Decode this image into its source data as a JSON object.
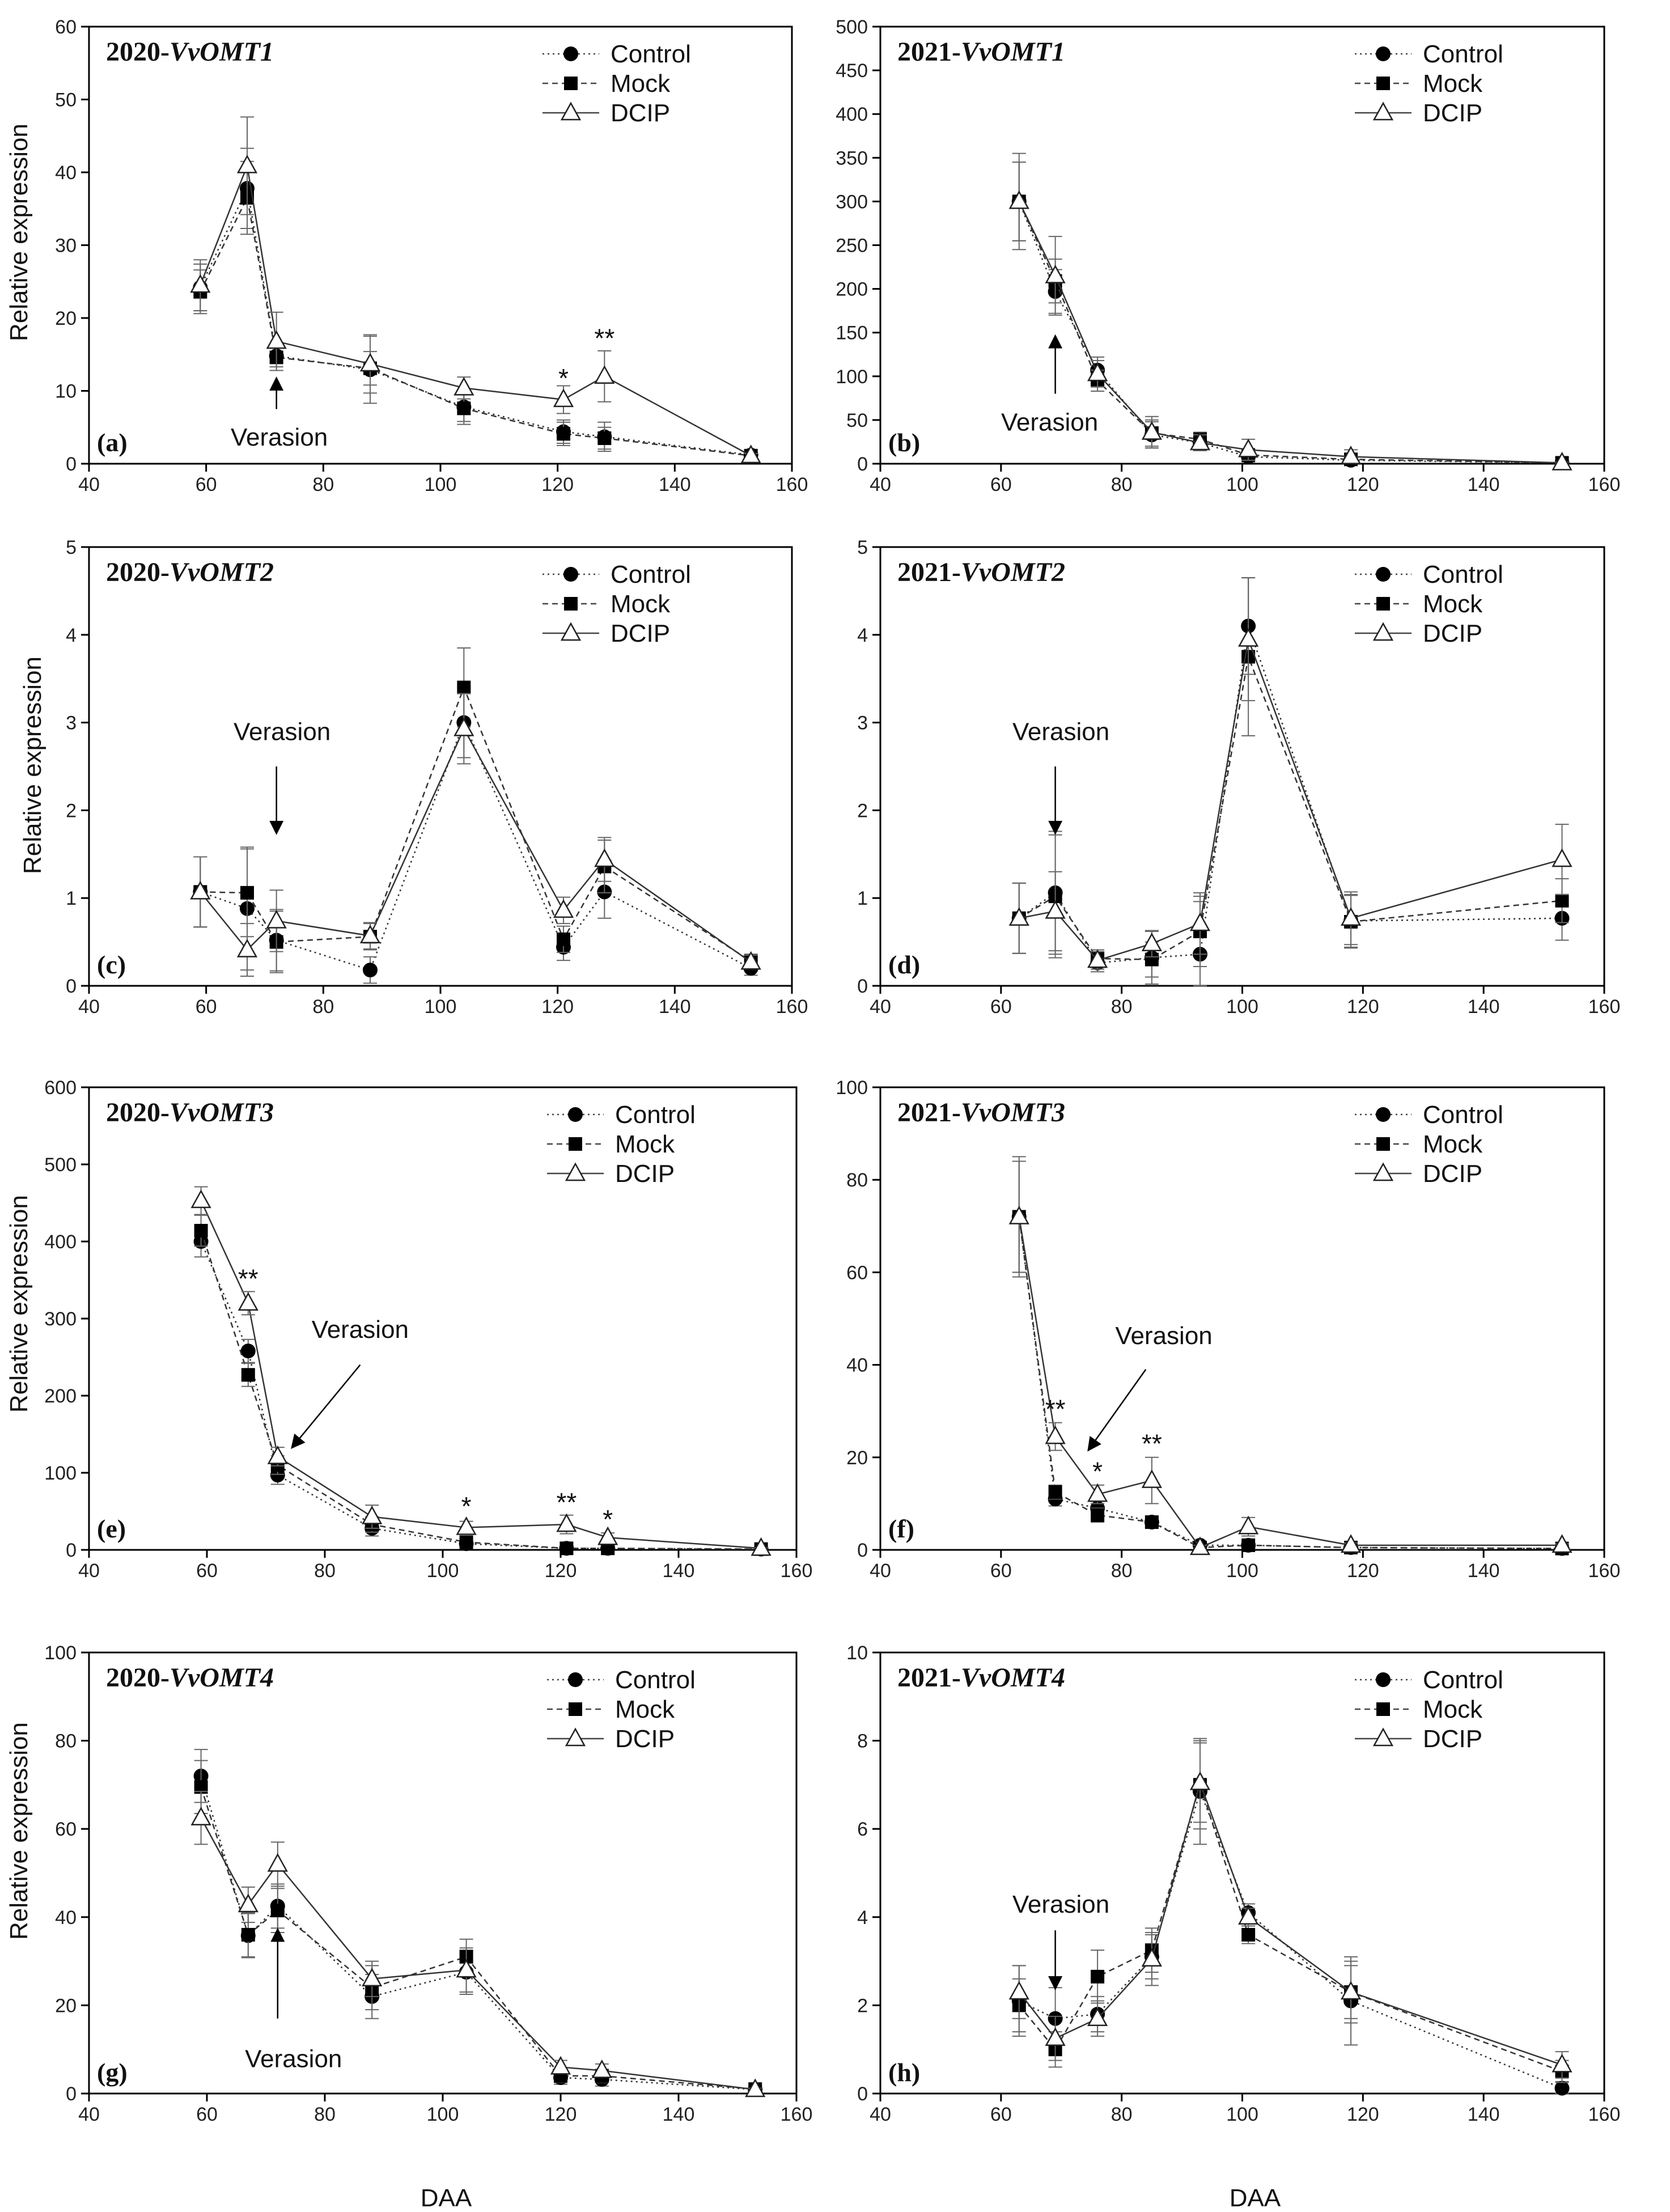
{
  "legend_labels": [
    "Control",
    "Mock",
    "DCIP"
  ],
  "xlabel": "DAA",
  "ylabel": "Relative expression",
  "verasion_label": "Verasion",
  "chart_data": [
    {
      "id": "a",
      "type": "line",
      "letter": "(a)",
      "gene_prefix": "2020-",
      "gene": "VvOMT1",
      "xlim": [
        40,
        160
      ],
      "ylim": [
        0,
        60
      ],
      "xticks": [
        40,
        60,
        80,
        100,
        120,
        140,
        160
      ],
      "yticks": [
        0,
        10,
        20,
        30,
        40,
        50,
        60
      ],
      "verasion": {
        "x": 72,
        "label_pos": "below"
      },
      "series": [
        {
          "name": "Control",
          "x": [
            59,
            67,
            72,
            88,
            104,
            121,
            128,
            153
          ],
          "y": [
            24.2,
            37.8,
            14.8,
            12.9,
            7.8,
            4.4,
            3.7,
            1.2
          ],
          "err": [
            3.2,
            5.5,
            1.5,
            4.6,
            2.0,
            1.6,
            2.0,
            0.3
          ]
        },
        {
          "name": "Mock",
          "x": [
            59,
            67,
            72,
            88,
            104,
            121,
            128,
            153
          ],
          "y": [
            23.6,
            36.5,
            14.6,
            13.1,
            7.6,
            4.1,
            3.5,
            1.1
          ],
          "err": [
            3.0,
            5.0,
            1.8,
            2.3,
            2.2,
            1.6,
            1.5,
            0.3
          ]
        },
        {
          "name": "DCIP",
          "x": [
            59,
            67,
            72,
            88,
            104,
            121,
            128,
            153
          ],
          "y": [
            24.5,
            40.9,
            16.8,
            13.7,
            10.4,
            8.8,
            12.0,
            1.1
          ],
          "err": [
            3.5,
            6.7,
            4.0,
            4.0,
            1.5,
            1.9,
            3.5,
            0.3
          ]
        }
      ],
      "stars": [
        {
          "x": 121,
          "y": 10.5,
          "text": "*"
        },
        {
          "x": 128,
          "y": 16.0,
          "text": "**"
        }
      ]
    },
    {
      "id": "b",
      "type": "line",
      "letter": "(b)",
      "gene_prefix": "2021-",
      "gene": "VvOMT1",
      "xlim": [
        40,
        160
      ],
      "ylim": [
        0,
        500
      ],
      "xticks": [
        40,
        60,
        80,
        100,
        120,
        140,
        160
      ],
      "yticks": [
        0,
        50,
        100,
        150,
        200,
        250,
        300,
        350,
        400,
        450,
        500
      ],
      "verasion": {
        "x": 69,
        "label_pos": "below"
      },
      "series": [
        {
          "name": "Control",
          "x": [
            63,
            69,
            76,
            85,
            93,
            101,
            118,
            153
          ],
          "y": [
            300,
            197,
            107,
            33,
            24,
            8,
            4,
            1
          ],
          "err": [
            45,
            25,
            15,
            15,
            9,
            6,
            4,
            1
          ]
        },
        {
          "name": "Mock",
          "x": [
            63,
            69,
            76,
            85,
            93,
            101,
            118,
            153
          ],
          "y": [
            300,
            209,
            95,
            35,
            28,
            10,
            5,
            1
          ],
          "err": [
            45,
            25,
            12,
            15,
            8,
            6,
            5,
            1
          ]
        },
        {
          "name": "DCIP",
          "x": [
            63,
            69,
            76,
            85,
            93,
            101,
            118,
            153
          ],
          "y": [
            300,
            215,
            103,
            36,
            24,
            16,
            8,
            1
          ],
          "err": [
            55,
            45,
            15,
            18,
            9,
            12,
            8,
            1
          ]
        }
      ],
      "stars": []
    },
    {
      "id": "c",
      "type": "line",
      "letter": "(c)",
      "gene_prefix": "2020-",
      "gene": "VvOMT2",
      "xlim": [
        40,
        160
      ],
      "ylim": [
        0,
        5
      ],
      "xticks": [
        40,
        60,
        80,
        100,
        120,
        140,
        160
      ],
      "yticks": [
        0,
        1,
        2,
        3,
        4,
        5
      ],
      "verasion": {
        "x": 72,
        "label_pos": "above"
      },
      "series": [
        {
          "name": "Control",
          "x": [
            59,
            67,
            72,
            88,
            104,
            121,
            128,
            153
          ],
          "y": [
            1.07,
            0.88,
            0.52,
            0.18,
            3.0,
            0.44,
            1.07,
            0.2
          ],
          "err": [
            0.4,
            0.7,
            0.35,
            0.15,
            0.4,
            0.15,
            0.3,
            0.08
          ]
        },
        {
          "name": "Mock",
          "x": [
            59,
            67,
            72,
            88,
            104,
            121,
            128,
            153
          ],
          "y": [
            1.07,
            1.06,
            0.5,
            0.56,
            3.4,
            0.53,
            1.36,
            0.28
          ],
          "err": [
            0.4,
            0.5,
            0.35,
            0.15,
            0.45,
            0.15,
            0.3,
            0.08
          ]
        },
        {
          "name": "DCIP",
          "x": [
            59,
            67,
            72,
            88,
            104,
            121,
            128,
            153
          ],
          "y": [
            1.07,
            0.41,
            0.74,
            0.57,
            2.93,
            0.86,
            1.44,
            0.27
          ],
          "err": [
            0.4,
            0.3,
            0.35,
            0.15,
            0.4,
            0.15,
            0.25,
            0.08
          ]
        }
      ],
      "stars": []
    },
    {
      "id": "d",
      "type": "line",
      "letter": "(d)",
      "gene_prefix": "2021-",
      "gene": "VvOMT2",
      "xlim": [
        40,
        160
      ],
      "ylim": [
        0,
        5
      ],
      "xticks": [
        40,
        60,
        80,
        100,
        120,
        140,
        160
      ],
      "yticks": [
        0,
        1,
        2,
        3,
        4,
        5
      ],
      "verasion": {
        "x": 69,
        "label_pos": "above"
      },
      "series": [
        {
          "name": "Control",
          "x": [
            63,
            69,
            76,
            85,
            93,
            101,
            118,
            153
          ],
          "y": [
            0.77,
            1.06,
            0.26,
            0.32,
            0.36,
            4.1,
            0.74,
            0.77
          ],
          "err": [
            0.4,
            0.7,
            0.1,
            0.3,
            0.6,
            0.55,
            0.3,
            0.25
          ]
        },
        {
          "name": "Mock",
          "x": [
            63,
            69,
            76,
            85,
            93,
            101,
            118,
            153
          ],
          "y": [
            0.77,
            1.02,
            0.31,
            0.3,
            0.62,
            3.75,
            0.73,
            0.97
          ],
          "err": [
            0.4,
            0.7,
            0.1,
            0.2,
            0.4,
            0.9,
            0.3,
            0.25
          ]
        },
        {
          "name": "DCIP",
          "x": [
            63,
            69,
            76,
            85,
            93,
            101,
            118,
            153
          ],
          "y": [
            0.77,
            0.85,
            0.29,
            0.48,
            0.71,
            3.95,
            0.77,
            1.44
          ],
          "err": [
            0.4,
            0.45,
            0.1,
            0.15,
            0.35,
            0.7,
            0.3,
            0.4
          ]
        }
      ],
      "stars": []
    },
    {
      "id": "e",
      "type": "line",
      "letter": "(e)",
      "gene_prefix": "2020-",
      "gene": "VvOMT3",
      "xlim": [
        40,
        160
      ],
      "ylim": [
        0,
        600
      ],
      "xticks": [
        40,
        60,
        80,
        100,
        120,
        140,
        160
      ],
      "yticks": [
        0,
        100,
        200,
        300,
        400,
        500,
        600
      ],
      "verasion": {
        "x": 74,
        "label_pos": "upright"
      },
      "series": [
        {
          "name": "Control",
          "x": [
            59,
            67,
            72,
            88,
            104,
            121,
            128,
            154
          ],
          "y": [
            400,
            258,
            97,
            28,
            8,
            2,
            2,
            1
          ],
          "err": [
            20,
            15,
            12,
            10,
            4,
            2,
            2,
            1
          ]
        },
        {
          "name": "Mock",
          "x": [
            59,
            67,
            72,
            88,
            104,
            121,
            128,
            154
          ],
          "y": [
            414,
            227,
            110,
            33,
            10,
            2,
            2,
            1
          ],
          "err": [
            20,
            15,
            12,
            10,
            4,
            2,
            2,
            1
          ]
        },
        {
          "name": "DCIP",
          "x": [
            59,
            67,
            72,
            88,
            104,
            121,
            128,
            154
          ],
          "y": [
            453,
            320,
            121,
            43,
            29,
            33,
            16,
            2
          ],
          "err": [
            18,
            15,
            12,
            15,
            8,
            12,
            6,
            1
          ]
        }
      ],
      "stars": [
        {
          "x": 67,
          "y": 340,
          "text": "**"
        },
        {
          "x": 104,
          "y": 45,
          "text": "*"
        },
        {
          "x": 121,
          "y": 50,
          "text": "**"
        },
        {
          "x": 128,
          "y": 28,
          "text": "*"
        }
      ]
    },
    {
      "id": "f",
      "type": "line",
      "letter": "(f)",
      "gene_prefix": "2021-",
      "gene": "VvOMT3",
      "xlim": [
        40,
        160
      ],
      "ylim": [
        0,
        100
      ],
      "xticks": [
        40,
        60,
        80,
        100,
        120,
        140,
        160
      ],
      "yticks": [
        0,
        20,
        40,
        60,
        80,
        100
      ],
      "verasion": {
        "x": 72,
        "label_pos": "upright"
      },
      "series": [
        {
          "name": "Control",
          "x": [
            63,
            69,
            76,
            85,
            93,
            101,
            118,
            153
          ],
          "y": [
            72,
            11,
            9,
            6,
            1,
            1,
            0.5,
            0.3
          ],
          "err": [
            12,
            1.5,
            1.5,
            1,
            0.5,
            0.5,
            0.3,
            0.2
          ]
        },
        {
          "name": "Mock",
          "x": [
            63,
            69,
            76,
            85,
            93,
            101,
            118,
            153
          ],
          "y": [
            72,
            12.5,
            7.5,
            6,
            0.5,
            1,
            0.5,
            0.3
          ],
          "err": [
            12,
            1.5,
            1.5,
            1,
            0.5,
            0.5,
            0.3,
            0.2
          ]
        },
        {
          "name": "DCIP",
          "x": [
            63,
            69,
            76,
            85,
            93,
            101,
            118,
            153
          ],
          "y": [
            72,
            24.5,
            12,
            15,
            0.5,
            5,
            1,
            1
          ],
          "err": [
            13,
            3,
            2,
            5,
            0.5,
            2,
            0.5,
            0.3
          ]
        }
      ],
      "stars": [
        {
          "x": 69,
          "y": 28.5,
          "text": "**"
        },
        {
          "x": 76,
          "y": 15,
          "text": "*"
        },
        {
          "x": 85,
          "y": 21,
          "text": "**"
        }
      ]
    },
    {
      "id": "g",
      "type": "line",
      "letter": "(g)",
      "gene_prefix": "2020-",
      "gene": "VvOMT4",
      "xlim": [
        40,
        160
      ],
      "ylim": [
        0,
        100
      ],
      "xticks": [
        40,
        60,
        80,
        100,
        120,
        140,
        160
      ],
      "yticks": [
        0,
        20,
        40,
        60,
        80,
        100
      ],
      "verasion": {
        "x": 72,
        "label_pos": "below"
      },
      "series": [
        {
          "name": "Control",
          "x": [
            59,
            67,
            72,
            88,
            104,
            120,
            127,
            153
          ],
          "y": [
            72,
            35.8,
            42.5,
            22,
            27.5,
            3.6,
            3.2,
            0.9
          ],
          "err": [
            6,
            5,
            5,
            5,
            5,
            1.5,
            1.5,
            0.3
          ]
        },
        {
          "name": "Mock",
          "x": [
            59,
            67,
            72,
            88,
            104,
            120,
            127,
            153
          ],
          "y": [
            69.5,
            36,
            41.5,
            24,
            31,
            4,
            4,
            1
          ],
          "err": [
            6,
            5,
            5,
            5,
            4,
            1.5,
            1.5,
            0.3
          ]
        },
        {
          "name": "DCIP",
          "x": [
            59,
            67,
            72,
            88,
            104,
            120,
            127,
            153
          ],
          "y": [
            62.5,
            42.8,
            52,
            26,
            28,
            6,
            5.2,
            0.9
          ],
          "err": [
            6,
            4,
            5,
            4,
            5,
            1.5,
            1.5,
            0.3
          ]
        }
      ],
      "stars": []
    },
    {
      "id": "h",
      "type": "line",
      "letter": "(h)",
      "gene_prefix": "2021-",
      "gene": "VvOMT4",
      "xlim": [
        40,
        160
      ],
      "ylim": [
        0,
        10
      ],
      "xticks": [
        40,
        60,
        80,
        100,
        120,
        140,
        160
      ],
      "yticks": [
        0,
        2,
        4,
        6,
        8,
        10
      ],
      "verasion": {
        "x": 69,
        "label_pos": "above"
      },
      "series": [
        {
          "name": "Control",
          "x": [
            63,
            69,
            76,
            85,
            93,
            101,
            118,
            153
          ],
          "y": [
            2.1,
            1.7,
            1.8,
            3.1,
            6.85,
            4.1,
            2.1,
            0.12
          ],
          "err": [
            0.8,
            0.7,
            0.4,
            0.5,
            1.2,
            0.2,
            1.0,
            0.15
          ]
        },
        {
          "name": "Mock",
          "x": [
            63,
            69,
            76,
            85,
            93,
            101,
            118,
            153
          ],
          "y": [
            2.0,
            1.0,
            2.65,
            3.25,
            7.0,
            3.6,
            2.3,
            0.5
          ],
          "err": [
            0.6,
            0.4,
            0.6,
            0.5,
            1.0,
            0.2,
            0.6,
            0.25
          ]
        },
        {
          "name": "DCIP",
          "x": [
            63,
            69,
            76,
            85,
            93,
            101,
            118,
            153
          ],
          "y": [
            2.3,
            1.25,
            1.7,
            3.05,
            7.05,
            4.0,
            2.3,
            0.65
          ],
          "err": [
            0.6,
            0.5,
            0.4,
            0.6,
            0.9,
            0.2,
            0.7,
            0.3
          ]
        }
      ],
      "stars": []
    }
  ]
}
